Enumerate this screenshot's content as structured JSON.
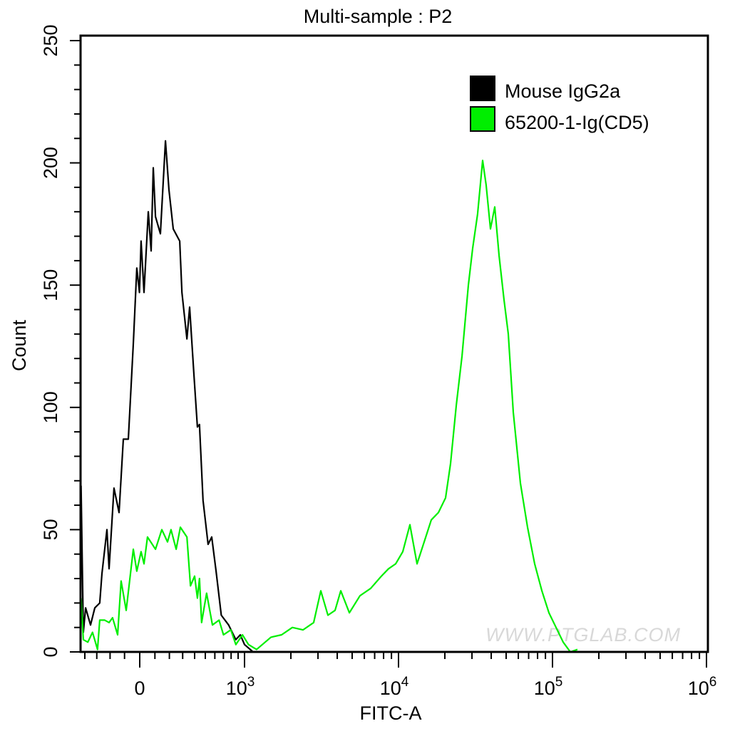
{
  "chart_data": {
    "type": "line",
    "title": "Multi-sample : P2",
    "xlabel": "FITC-A",
    "ylabel": "Count",
    "x_scale": "biexponential",
    "xlim": [
      -440,
      1000000
    ],
    "ylim": [
      0,
      250
    ],
    "x_tick_labels": [
      {
        "value": 0,
        "label": "0",
        "sup": ""
      },
      {
        "value": 1000,
        "label": "10",
        "sup": "3"
      },
      {
        "value": 10000,
        "label": "10",
        "sup": "4"
      },
      {
        "value": 100000,
        "label": "10",
        "sup": "5"
      },
      {
        "value": 1000000,
        "label": "10",
        "sup": "6"
      }
    ],
    "y_ticks": [
      0,
      50,
      100,
      150,
      200,
      250
    ],
    "y_tick_labels": [
      "0",
      "50",
      "100",
      "150",
      "200",
      "250"
    ],
    "grid": false,
    "legend_position": "top-right",
    "series": [
      {
        "name": "Mouse IgG2a",
        "color": "#000000",
        "x": [
          -434,
          -413,
          -393,
          -351,
          -316,
          -277,
          -260,
          -223,
          -207,
          -172,
          -137,
          -108,
          -75,
          -42,
          -19,
          -2,
          9,
          28,
          56,
          75,
          89,
          104,
          137,
          172,
          197,
          228,
          277,
          294,
          334,
          357,
          393,
          425,
          444,
          478,
          528,
          566,
          614,
          674,
          767,
          866,
          933,
          1000,
          1137
        ],
        "y": [
          68,
          8,
          18,
          11,
          18,
          20,
          32,
          50,
          34,
          67,
          57,
          87,
          87,
          126,
          157,
          147,
          168,
          147,
          180,
          164,
          198,
          178,
          171,
          209,
          189,
          173,
          168,
          147,
          128,
          141,
          114,
          92,
          93,
          62,
          44,
          47,
          33,
          15,
          11,
          5,
          7,
          3,
          0
        ]
      },
      {
        "name": "65200-1-Ig(CD5)",
        "color": "#00ee00",
        "x": [
          -434,
          -413,
          -374,
          -334,
          -294,
          -277,
          -239,
          -207,
          -182,
          -147,
          -123,
          -89,
          -42,
          -19,
          9,
          28,
          51,
          104,
          147,
          187,
          212,
          250,
          282,
          334,
          364,
          400,
          425,
          444,
          464,
          513,
          574,
          648,
          701,
          796,
          866,
          967,
          1061,
          1198,
          1483,
          1741,
          2044,
          2398,
          2813,
          3128,
          3480,
          3871,
          4217,
          4795,
          5623,
          6596,
          7740,
          8610,
          9580,
          10660,
          11860,
          13200,
          14680,
          16330,
          18170,
          20210,
          21780,
          23730,
          25840,
          28440,
          30290,
          32630,
          35170,
          37080,
          39550,
          42170,
          44980,
          48440,
          51640,
          55620,
          61900,
          68850,
          76600,
          85300,
          94800,
          105500,
          117300,
          130600,
          145200
        ],
        "y": [
          22,
          5,
          4,
          8,
          1,
          13,
          13,
          12,
          14,
          7,
          29,
          17,
          42,
          33,
          41,
          36,
          47,
          42,
          50,
          45,
          50,
          42,
          51,
          47,
          27,
          31,
          22,
          30,
          12,
          24,
          11,
          13,
          7,
          9,
          3,
          7,
          3,
          1,
          6,
          7,
          10,
          9,
          12,
          25,
          15,
          17,
          25,
          16,
          23,
          26,
          31,
          34,
          36,
          41,
          52,
          36,
          45,
          54,
          57,
          63,
          77,
          101,
          121,
          150,
          165,
          179,
          201,
          191,
          173,
          182,
          162,
          144,
          130,
          98,
          69,
          51,
          36,
          25,
          16,
          10,
          4,
          0,
          1
        ]
      }
    ],
    "watermark": "WWW.PTGLAB.COM"
  }
}
